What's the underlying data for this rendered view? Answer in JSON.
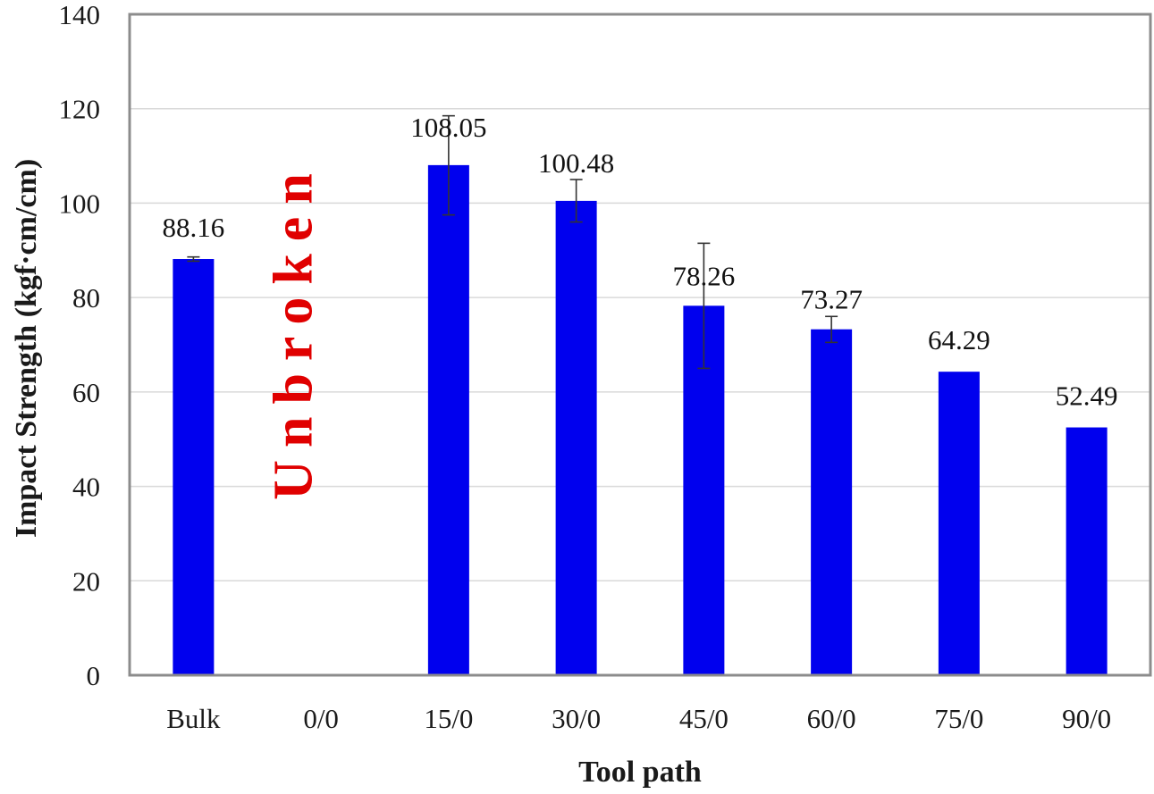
{
  "chart_data": {
    "type": "bar",
    "xlabel": "Tool path",
    "ylabel": "Impact Strength (kgf·cm/cm)",
    "ylim": [
      0,
      140
    ],
    "yticks": [
      0,
      20,
      40,
      60,
      80,
      100,
      120,
      140
    ],
    "categories": [
      "Bulk",
      "0/0",
      "15/0",
      "30/0",
      "45/0",
      "60/0",
      "75/0",
      "90/0"
    ],
    "values": [
      88.16,
      null,
      108.05,
      100.48,
      78.26,
      73.27,
      64.29,
      52.49
    ],
    "value_labels": [
      "88.16",
      "",
      "108.05",
      "100.48",
      "78.26",
      "73.27",
      "64.29",
      "52.49"
    ],
    "error_bars": [
      {
        "low": 87.7,
        "high": 88.6
      },
      null,
      {
        "low": 97.5,
        "high": 118.5
      },
      {
        "low": 96.0,
        "high": 105.0
      },
      {
        "low": 65.0,
        "high": 91.5
      },
      {
        "low": 70.5,
        "high": 76.0
      },
      null,
      null
    ],
    "annotation": {
      "text": "Unbroken",
      "category": "0/0"
    },
    "grid": true,
    "colors": {
      "bar": "#0000ee",
      "annotation": "#e00000",
      "grid": "#d9d9d9",
      "frame": "#8c8c8c",
      "error_bar": "#333333"
    }
  }
}
